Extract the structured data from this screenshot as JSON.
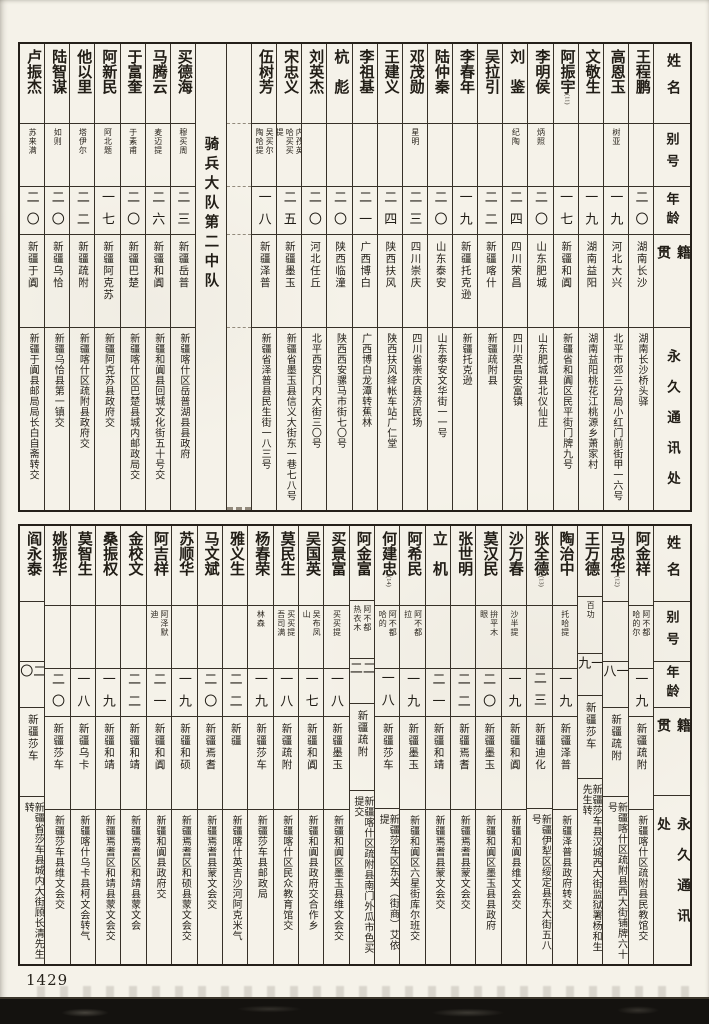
{
  "page": {
    "number": "1429"
  },
  "headers": {
    "name": "姓名",
    "byname": "别号",
    "age": "年龄",
    "native": "籍贯",
    "address": "永久通讯处"
  },
  "section_label": "骑兵大队第二中队",
  "tables": [
    {
      "id": "top",
      "columns": [
        {
          "name": "王程鹏",
          "byname": "",
          "age": "二〇",
          "native": "湖南长沙",
          "address": "湖南长沙桥头驿"
        },
        {
          "name": "高恩玉",
          "byname": "树亚",
          "age": "一九",
          "native": "河北大兴",
          "address": "北平市郊三分局小红门前街甲一六号"
        },
        {
          "name": "文敬生",
          "byname": "",
          "age": "一九",
          "native": "湖南益阳",
          "address": "湖南益阳桃花江桃源乡萧家村"
        },
        {
          "name": "阿振宇",
          "note": "(11)",
          "byname": "",
          "age": "一七",
          "native": "新疆和阗",
          "address": "新疆省和阗区民平街门牌九号"
        },
        {
          "name": "李明侯",
          "byname": "炳照",
          "age": "二〇",
          "native": "山东肥城",
          "address": "山东肥城县北仪仙庄"
        },
        {
          "name": "刘鉴",
          "byname": "纪陶",
          "age": "二四",
          "native": "四川荣昌",
          "address": "四川荣昌安富镇"
        },
        {
          "name": "吴拉引",
          "byname": "",
          "age": "二二",
          "native": "新疆喀什",
          "address": "新疆疏附县"
        },
        {
          "name": "李春年",
          "byname": "",
          "age": "一九",
          "native": "新疆托克逊",
          "address": "新疆托克逊"
        },
        {
          "name": "陆仲秦",
          "byname": "",
          "age": "二〇",
          "native": "山东泰安",
          "address": "山东泰安文华街一一号"
        },
        {
          "name": "邓茂勋",
          "byname": "星明",
          "age": "二三",
          "native": "四川崇庆",
          "address": "四川省崇庆县济民场"
        },
        {
          "name": "王建义",
          "byname": "",
          "age": "二四",
          "native": "陕西扶风",
          "address": "陕西扶风绛帐车站广仁堂"
        },
        {
          "name": "李祖基",
          "byname": "",
          "age": "二一",
          "native": "广西博白",
          "address": "广西博白龙潭转蕉林"
        },
        {
          "name": "杭彪",
          "byname": "",
          "age": "二〇",
          "native": "陕西临潼",
          "address": "陕西西安骡马市街七〇号"
        },
        {
          "name": "刘英杰",
          "byname": "",
          "age": "二〇",
          "native": "河北任丘",
          "address": "北平西安门内大街三〇号"
        },
        {
          "name": "宋忠义",
          "byname": "内孜英哈买买提",
          "age": "二五",
          "native": "新疆墨玉",
          "address": "新疆省墨玉县信义大街东一巷七八号"
        },
        {
          "name": "伍树芳",
          "byname": "吴买尔陶哈提",
          "age": "一八",
          "native": "新疆泽普",
          "address": "新疆省泽普县民生街一八三号"
        },
        {
          "empty": true
        },
        {
          "section": true
        },
        {
          "name": "买德海",
          "byname": "穆买周",
          "age": "二三",
          "native": "新疆岳普",
          "address": "新疆喀什区岳普湖县县政府"
        },
        {
          "name": "马腾云",
          "byname": "麦迈提",
          "age": "二六",
          "native": "新疆和阗",
          "address": "新疆和阗县回城文化街五十号交"
        },
        {
          "name": "于富奎",
          "byname": "于素甫",
          "age": "二〇",
          "native": "新疆巴楚",
          "address": "新疆喀什区巴楚县城内邮政局交"
        },
        {
          "name": "阿新民",
          "byname": "阿北题",
          "age": "一七",
          "native": "新疆阿克苏",
          "address": "新疆阿克苏县政府交"
        },
        {
          "name": "他以里",
          "byname": "塔伊尔",
          "age": "二二",
          "native": "新疆疏附",
          "address": "新疆喀什区疏附县政府交"
        },
        {
          "name": "陆智谋",
          "byname": "如则",
          "age": "二〇",
          "native": "新疆乌恰",
          "address": "新疆乌恰县第一镇交"
        },
        {
          "name": "卢振杰",
          "byname": "苏来满",
          "age": "二〇",
          "native": "新疆于阗",
          "address": "新疆于阗县邮局局长白自斋转交"
        }
      ]
    },
    {
      "id": "bottom",
      "columns": [
        {
          "name": "阿金祥",
          "byname": "阿不都哈的尔",
          "age": "一九",
          "native": "新疆疏附",
          "address": "新疆喀什区疏附县民教馆交"
        },
        {
          "name": "马忠华",
          "note": "(12)",
          "byname": "",
          "age": "一八",
          "native": "新疆疏附",
          "address": "新疆喀什区疏附县西大街铺牌六十号"
        },
        {
          "name": "王万德",
          "byname": "百功",
          "age": "一九",
          "native": "新疆莎车",
          "address": "新疆莎车县汉城西大街监狱署杨和生先生转"
        },
        {
          "name": "陶治中",
          "byname": "托哈提",
          "age": "一九",
          "native": "新疆泽普",
          "address": "新疆泽普县政府转交"
        },
        {
          "name": "张全德",
          "note": "(13)",
          "byname": "",
          "age": "二三",
          "native": "新疆迪化",
          "address": "新疆伊犁区绥定县东大街五八号"
        },
        {
          "name": "沙万春",
          "byname": "沙半提",
          "age": "一九",
          "native": "新疆和阗",
          "address": "新疆和阗县维文会交"
        },
        {
          "name": "莫汉民",
          "byname": "拚平木眼",
          "age": "二〇",
          "native": "新疆墨玉",
          "address": "新疆和阗区墨玉县县政府"
        },
        {
          "name": "张世明",
          "byname": "",
          "age": "二二",
          "native": "新疆焉耆",
          "address": "新疆焉耆县蒙文会交"
        },
        {
          "name": "立机",
          "byname": "",
          "age": "二一",
          "native": "新疆和靖",
          "address": "新疆焉耆县蒙文会交"
        },
        {
          "name": "阿希民",
          "byname": "阿不都拉",
          "age": "一九",
          "native": "新疆墨玉",
          "address": "新疆和阗区六星街库尔班交"
        },
        {
          "name": "何建忠",
          "note": "(14)",
          "byname": "阿不都哈的",
          "age": "一八",
          "native": "新疆莎车",
          "address": "新疆莎车区东关（街商）艾依提"
        },
        {
          "name": "阿金富",
          "byname": "阿不都热衣木",
          "age": "二二",
          "native": "新疆疏附",
          "address": "新疆喀什区疏附县南门外瓜市色买提交"
        },
        {
          "name": "买景富",
          "byname": "买买提",
          "age": "一八",
          "native": "新疆墨玉",
          "address": "新疆和阗区墨玉县维文会交"
        },
        {
          "name": "吴国英",
          "byname": "吴布凤山",
          "age": "一七",
          "native": "新疆和阗",
          "address": "新疆和阗县政府交合作乡"
        },
        {
          "name": "莫民生",
          "byname": "买买提吾司满",
          "age": "一八",
          "native": "新疆疏附",
          "address": "新疆喀什区民众教育馆交"
        },
        {
          "name": "杨春荣",
          "byname": "林森",
          "age": "一九",
          "native": "新疆莎车",
          "address": "新疆莎车县邮政局"
        },
        {
          "name": "雅义生",
          "byname": "",
          "age": "二二",
          "native": "新疆",
          "address": "新疆喀什英吉沙河阿克米气"
        },
        {
          "name": "马文斌",
          "byname": "",
          "age": "二〇",
          "native": "新疆焉耆",
          "address": "新疆焉耆县蒙文会交"
        },
        {
          "name": "苏顺华",
          "byname": "",
          "age": "一九",
          "native": "新疆和硕",
          "address": "新疆焉耆区和硕县蒙文会交"
        },
        {
          "name": "阿吉祥",
          "byname": "阿泽默迪",
          "age": "二一",
          "native": "新疆和阗",
          "address": "新疆和阗县政府交"
        },
        {
          "name": "金校文",
          "byname": "",
          "age": "二二",
          "native": "新疆和靖",
          "address": "新疆焉耆区和靖县蒙文会"
        },
        {
          "name": "桑振权",
          "byname": "",
          "age": "一九",
          "native": "新疆和靖",
          "address": "新疆焉耆区和靖县蒙文会交"
        },
        {
          "name": "莫智生",
          "byname": "",
          "age": "一八",
          "native": "新疆乌卡",
          "address": "新疆喀什乌卡县柯文会转气"
        },
        {
          "name": "姚振华",
          "byname": "",
          "age": "二〇",
          "native": "新疆莎车",
          "address": "新疆莎车县维文会交"
        },
        {
          "name": "阎永泰",
          "byname": "",
          "age": "二〇",
          "native": "新疆莎车",
          "address": "新疆省莎车县城内大街顾长清先生转"
        }
      ]
    }
  ]
}
